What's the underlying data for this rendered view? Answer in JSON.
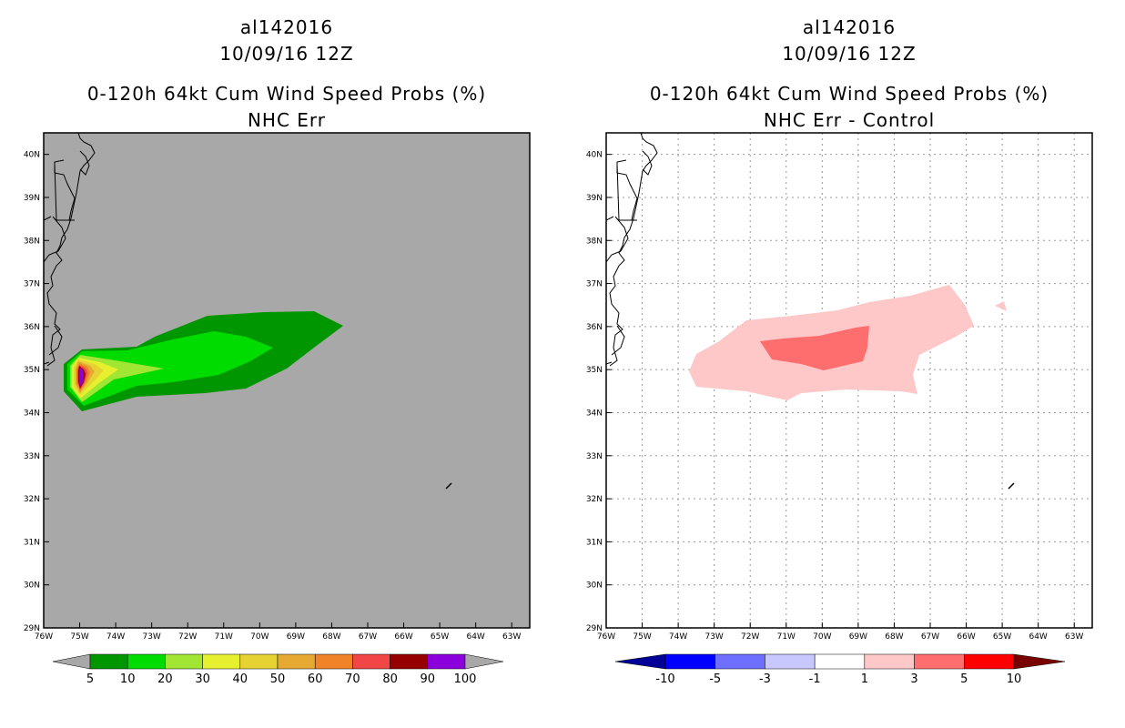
{
  "storm_id": "al142016",
  "datetime": "10/09/16 12Z",
  "panels": [
    {
      "id": "left",
      "title": "0-120h 64kt Cum Wind Speed Probs (%)",
      "subtitle": "NHC Err",
      "background_color": "#a8a8a8",
      "gridlines": false
    },
    {
      "id": "right",
      "title": "0-120h 64kt Cum Wind Speed Probs (%)",
      "subtitle": "NHC Err - Control",
      "background_color": "#ffffff",
      "gridlines": true
    }
  ],
  "axes": {
    "lon_labels": [
      "76W",
      "75W",
      "74W",
      "73W",
      "72W",
      "71W",
      "70W",
      "69W",
      "68W",
      "67W",
      "66W",
      "65W",
      "64W",
      "63W"
    ],
    "lat_labels": [
      "29N",
      "30N",
      "31N",
      "32N",
      "33N",
      "34N",
      "35N",
      "36N",
      "37N",
      "38N",
      "39N",
      "40N"
    ],
    "lon_range": [
      -76,
      -62.5
    ],
    "lat_range": [
      29,
      40.5
    ]
  },
  "colorbars": {
    "left": {
      "labels": [
        "5",
        "10",
        "20",
        "30",
        "40",
        "50",
        "60",
        "70",
        "80",
        "90",
        "100"
      ],
      "colors": [
        "#009600",
        "#00dc00",
        "#a0e632",
        "#e6f02e",
        "#e6d232",
        "#e6aa32",
        "#f08228",
        "#f04646",
        "#960000",
        "#8c00dc"
      ],
      "arrow_color": "#a8a8a8"
    },
    "right": {
      "labels": [
        "-10",
        "-5",
        "-3",
        "-1",
        "1",
        "3",
        "5",
        "10"
      ],
      "colors": [
        "#0000ff",
        "#6e6eff",
        "#c8c8ff",
        "#ffffff",
        "#ffc8c8",
        "#ff6e6e",
        "#ff0000"
      ],
      "low_arrow_color": "#000096",
      "high_arrow_color": "#780000"
    }
  }
}
